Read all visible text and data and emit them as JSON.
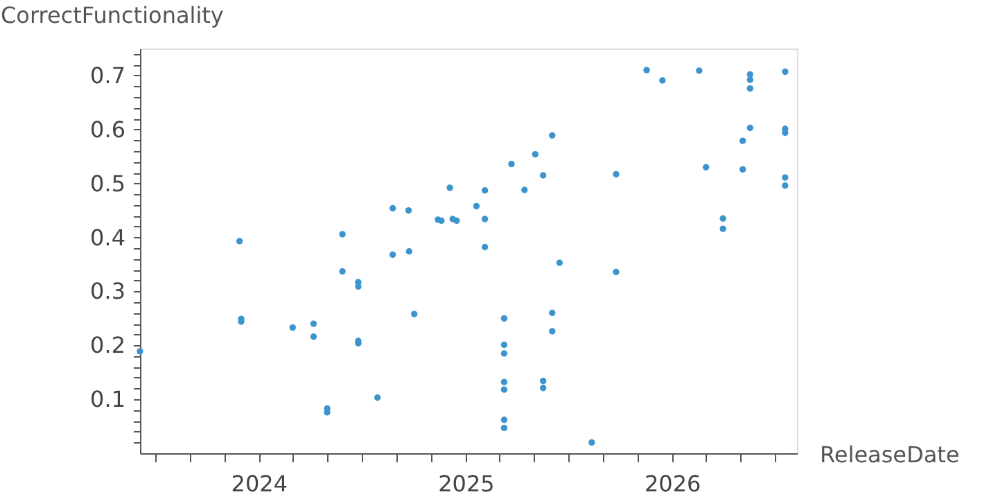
{
  "chart_data": {
    "type": "scatter",
    "xlabel": "ReleaseDate",
    "ylabel": "CorrectFunctionality",
    "marker": "circle",
    "grid": false,
    "xlim": [
      "2023-06-05",
      "2026-08-10"
    ],
    "xticks": [
      {
        "value": "2023-07-01",
        "label": null
      },
      {
        "value": "2023-09-01",
        "label": null
      },
      {
        "value": "2023-11-01",
        "label": null
      },
      "2024",
      {
        "value": "2024-03-01",
        "label": null
      },
      {
        "value": "2024-05-01",
        "label": null
      },
      {
        "value": "2024-07-01",
        "label": null
      },
      {
        "value": "2024-09-01",
        "label": null
      },
      {
        "value": "2024-11-01",
        "label": null
      },
      "2025",
      {
        "value": "2025-03-01",
        "label": null
      },
      {
        "value": "2025-05-01",
        "label": null
      },
      {
        "value": "2025-07-01",
        "label": null
      },
      {
        "value": "2025-09-01",
        "label": null
      },
      {
        "value": "2025-11-01",
        "label": null
      },
      "2026",
      {
        "value": "2026-03-01",
        "label": null
      },
      {
        "value": "2026-05-01",
        "label": null
      },
      {
        "value": "2026-07-01",
        "label": null
      }
    ],
    "ylim": [
      0,
      0.75
    ],
    "yticks": [
      {
        "value": 0.02,
        "label": null
      },
      {
        "value": 0.04,
        "label": null
      },
      {
        "value": 0.06,
        "label": null
      },
      {
        "value": 0.08,
        "label": null
      },
      0.1,
      {
        "value": 0.12,
        "label": null
      },
      {
        "value": 0.14,
        "label": null
      },
      {
        "value": 0.16,
        "label": null
      },
      {
        "value": 0.18,
        "label": null
      },
      0.2,
      {
        "value": 0.22,
        "label": null
      },
      {
        "value": 0.24,
        "label": null
      },
      {
        "value": 0.26,
        "label": null
      },
      {
        "value": 0.28,
        "label": null
      },
      0.3,
      {
        "value": 0.32,
        "label": null
      },
      {
        "value": 0.34,
        "label": null
      },
      {
        "value": 0.36,
        "label": null
      },
      {
        "value": 0.38,
        "label": null
      },
      0.4,
      {
        "value": 0.42,
        "label": null
      },
      {
        "value": 0.44,
        "label": null
      },
      {
        "value": 0.46,
        "label": null
      },
      {
        "value": 0.48,
        "label": null
      },
      0.5,
      {
        "value": 0.52,
        "label": null
      },
      {
        "value": 0.54,
        "label": null
      },
      {
        "value": 0.56,
        "label": null
      },
      {
        "value": 0.58,
        "label": null
      },
      0.6,
      {
        "value": 0.62,
        "label": null
      },
      {
        "value": 0.64,
        "label": null
      },
      {
        "value": 0.66,
        "label": null
      },
      {
        "value": 0.68,
        "label": null
      },
      0.7,
      {
        "value": 0.72,
        "label": null
      },
      {
        "value": 0.74,
        "label": null
      }
    ],
    "series": [
      {
        "color": "#3c94cd",
        "x": [
          "2023-06-05",
          "2023-11-28",
          "2023-12-01",
          "2023-12-01",
          "2024-03-01",
          "2024-04-07",
          "2024-04-07",
          "2024-05-01",
          "2024-05-01",
          "2024-05-28",
          "2024-05-28",
          "2024-06-25",
          "2024-06-25",
          "2024-06-25",
          "2024-06-25",
          "2024-07-29",
          "2024-08-25",
          "2024-09-23",
          "2024-10-02",
          "2024-08-25",
          "2024-09-22",
          "2024-11-13",
          "2024-11-19",
          "2024-12-04",
          "2024-12-09",
          "2024-12-16",
          "2025-01-20",
          "2025-02-04",
          "2025-02-04",
          "2025-02-04",
          "2025-03-10",
          "2025-03-10",
          "2025-03-10",
          "2025-03-10",
          "2025-03-10",
          "2025-03-10",
          "2025-03-10",
          "2025-03-23",
          "2025-04-15",
          "2025-05-04",
          "2025-05-18",
          "2025-05-18",
          "2025-05-18",
          "2025-06-03",
          "2025-06-03",
          "2025-06-03",
          "2025-06-16",
          "2025-08-12",
          "2025-09-24",
          "2025-09-24",
          "2025-11-17",
          "2025-12-15",
          "2026-02-18",
          "2026-03-02",
          "2026-04-01",
          "2026-04-01",
          "2026-05-06",
          "2026-05-06",
          "2026-05-19",
          "2026-05-19",
          "2026-05-19",
          "2026-05-19",
          "2026-07-20",
          "2026-07-20",
          "2026-07-20",
          "2026-07-20",
          "2026-07-20"
        ],
        "values": [
          0.189,
          0.393,
          0.249,
          0.244,
          0.233,
          0.24,
          0.216,
          0.083,
          0.076,
          0.406,
          0.337,
          0.317,
          0.309,
          0.208,
          0.204,
          0.103,
          0.368,
          0.374,
          0.258,
          0.454,
          0.45,
          0.433,
          0.431,
          0.492,
          0.434,
          0.431,
          0.458,
          0.487,
          0.434,
          0.382,
          0.25,
          0.201,
          0.185,
          0.132,
          0.118,
          0.062,
          0.047,
          0.536,
          0.488,
          0.554,
          0.515,
          0.134,
          0.121,
          0.589,
          0.26,
          0.226,
          0.353,
          0.02,
          0.517,
          0.336,
          0.71,
          0.691,
          0.709,
          0.53,
          0.435,
          0.416,
          0.579,
          0.526,
          0.702,
          0.692,
          0.676,
          0.603,
          0.707,
          0.601,
          0.594,
          0.511,
          0.496
        ]
      }
    ]
  }
}
